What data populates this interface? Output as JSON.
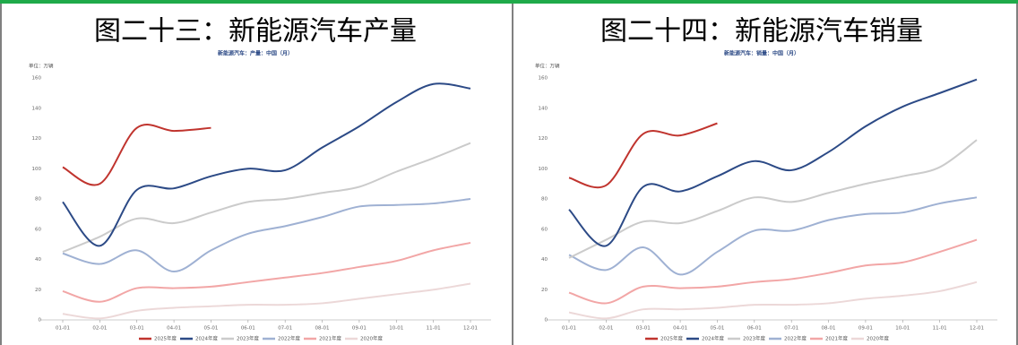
{
  "chart_data": [
    {
      "type": "line",
      "title": "图二十三：新能源汽车产量",
      "subtitle": "新能源汽车：产量：中国（月）",
      "unit": "单位：万辆",
      "categories": [
        "01-01",
        "02-01",
        "03-01",
        "04-01",
        "05-01",
        "06-01",
        "07-01",
        "08-01",
        "09-01",
        "10-01",
        "11-01",
        "12-01"
      ],
      "ylim": [
        0,
        160
      ],
      "yticks": [
        0,
        20,
        40,
        60,
        80,
        100,
        120,
        140,
        160
      ],
      "series": [
        {
          "name": "2025年度",
          "color": "#c0342e",
          "values": [
            101,
            90,
            127,
            125,
            127,
            null,
            null,
            null,
            null,
            null,
            null,
            null
          ]
        },
        {
          "name": "2024年度",
          "color": "#2c4a86",
          "values": [
            78,
            49,
            86,
            87,
            95,
            100,
            99,
            114,
            128,
            144,
            156,
            153
          ]
        },
        {
          "name": "2023年度",
          "color": "#cbcbcb",
          "values": [
            45,
            55,
            67,
            64,
            71,
            78,
            80,
            84,
            88,
            98,
            107,
            117
          ]
        },
        {
          "name": "2022年度",
          "color": "#9fb1d3",
          "values": [
            44,
            37,
            46,
            32,
            46,
            57,
            62,
            68,
            75,
            76,
            77,
            80
          ]
        },
        {
          "name": "2021年度",
          "color": "#f2a6a6",
          "values": [
            19,
            12,
            21,
            21,
            22,
            25,
            28,
            31,
            35,
            39,
            46,
            51
          ]
        },
        {
          "name": "2020年度",
          "color": "#ecd8d8",
          "values": [
            4,
            1,
            6,
            8,
            9,
            10,
            10,
            11,
            14,
            17,
            20,
            24
          ]
        }
      ]
    },
    {
      "type": "line",
      "title": "图二十四：新能源汽车销量",
      "subtitle": "新能源汽车：销量：中国（月）",
      "unit": "单位：万辆",
      "categories": [
        "01-01",
        "02-01",
        "03-01",
        "04-01",
        "05-01",
        "06-01",
        "07-01",
        "08-01",
        "09-01",
        "10-01",
        "11-01",
        "12-01"
      ],
      "ylim": [
        0,
        160
      ],
      "yticks": [
        0,
        20,
        40,
        60,
        80,
        100,
        120,
        140,
        160
      ],
      "series": [
        {
          "name": "2025年度",
          "color": "#c0342e",
          "values": [
            94,
            89,
            123,
            122,
            130,
            null,
            null,
            null,
            null,
            null,
            null,
            null
          ]
        },
        {
          "name": "2024年度",
          "color": "#2c4a86",
          "values": [
            73,
            49,
            88,
            85,
            95,
            105,
            99,
            111,
            128,
            141,
            150,
            159
          ]
        },
        {
          "name": "2023年度",
          "color": "#cbcbcb",
          "values": [
            41,
            53,
            65,
            64,
            72,
            81,
            78,
            84,
            90,
            95,
            101,
            119
          ]
        },
        {
          "name": "2022年度",
          "color": "#9fb1d3",
          "values": [
            43,
            33,
            48,
            30,
            45,
            59,
            59,
            66,
            70,
            71,
            77,
            81
          ]
        },
        {
          "name": "2021年度",
          "color": "#f2a6a6",
          "values": [
            18,
            11,
            22,
            21,
            22,
            25,
            27,
            31,
            36,
            38,
            45,
            53
          ]
        },
        {
          "name": "2020年度",
          "color": "#ecd8d8",
          "values": [
            5,
            1,
            7,
            7,
            8,
            10,
            10,
            11,
            14,
            16,
            19,
            25
          ]
        }
      ]
    }
  ]
}
